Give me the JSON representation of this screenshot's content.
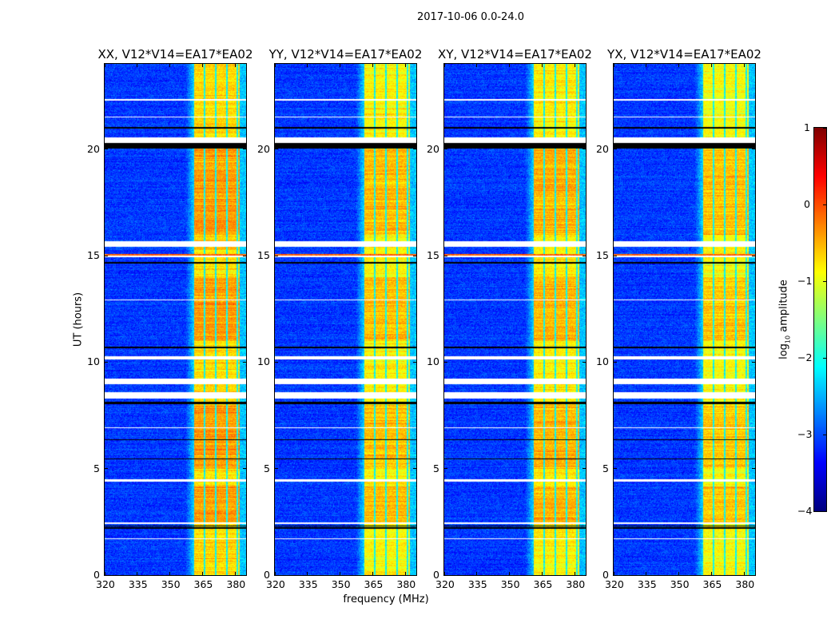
{
  "suptitle": "2017-10-06 0.0-24.0",
  "chart_data": {
    "type": "heatmap",
    "title": "2017-10-06 0.0-24.0",
    "xlabel": "frequency (MHz)",
    "ylabel": "UT (hours)",
    "xlim": [
      320,
      385
    ],
    "ylim": [
      0,
      24
    ],
    "xticks": [
      320,
      335,
      350,
      365,
      380
    ],
    "yticks": [
      0,
      5,
      10,
      15,
      20
    ],
    "panels": [
      {
        "title": "XX, V12*V14=EA17*EA02",
        "band_level": -0.7
      },
      {
        "title": "YY, V12*V14=EA17*EA02",
        "band_level": -0.85
      },
      {
        "title": "XY, V12*V14=EA17*EA02",
        "band_level": -0.8
      },
      {
        "title": "YX, V12*V14=EA17*EA02",
        "band_level": -0.9
      }
    ],
    "background_level": -3.1,
    "rfi_band_mhz": [
      361,
      382
    ],
    "channel_gaps_mhz": [
      365.8,
      370.9,
      376.0,
      380.8
    ],
    "flagged_white_hours": [
      [
        20.3,
        20.55
      ],
      [
        15.45,
        15.7
      ],
      [
        14.95,
        15.0
      ],
      [
        10.15,
        10.3
      ],
      [
        9.0,
        9.25
      ],
      [
        8.3,
        8.6
      ],
      [
        4.4,
        4.5
      ],
      [
        2.4,
        2.5
      ],
      [
        22.3,
        22.35
      ],
      [
        21.5,
        21.55
      ],
      [
        12.9,
        12.95
      ],
      [
        6.9,
        6.95
      ],
      [
        1.7,
        1.75
      ]
    ],
    "flagged_black_hours": [
      [
        20.05,
        20.3
      ],
      [
        10.65,
        10.75
      ],
      [
        8.05,
        8.15
      ],
      [
        2.2,
        2.27
      ],
      [
        2.32,
        2.36
      ],
      [
        21.0,
        21.05
      ],
      [
        14.65,
        14.7
      ],
      [
        6.35,
        6.4
      ],
      [
        5.45,
        5.5
      ]
    ],
    "colorbar": {
      "label_prefix": "log",
      "label_sub": "10",
      "label_suffix": " amplitude",
      "range": [
        -4,
        1
      ],
      "ticks": [
        1,
        0,
        -1,
        -2,
        -3,
        -4
      ],
      "tick_labels": [
        "1",
        "0",
        "−1",
        "−2",
        "−3",
        "−4"
      ],
      "colormap": "jet"
    }
  }
}
